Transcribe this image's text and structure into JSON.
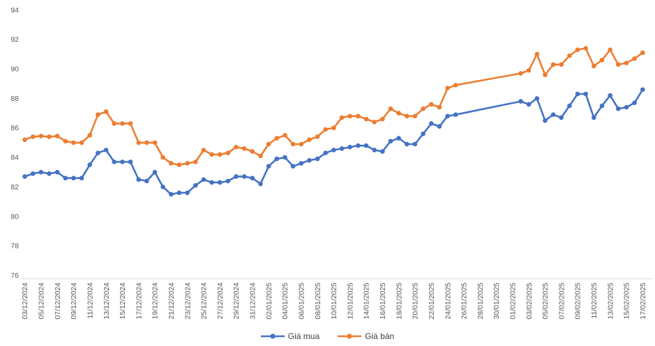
{
  "chart_data": {
    "type": "line",
    "title": "",
    "xlabel": "",
    "ylabel": "",
    "grid": false,
    "legend_position": "bottom",
    "ylim": [
      76,
      94
    ],
    "y_ticks": [
      76,
      78,
      80,
      82,
      84,
      86,
      88,
      90,
      92,
      94
    ],
    "axis_line_color": "#d9d9d9",
    "tick_label_color": "#595959",
    "x": [
      "03/12/2024",
      "04/12/2024",
      "05/12/2024",
      "06/12/2024",
      "07/12/2024",
      "08/12/2024",
      "09/12/2024",
      "10/12/2024",
      "11/12/2024",
      "12/12/2024",
      "13/12/2024",
      "14/12/2024",
      "15/12/2024",
      "16/12/2024",
      "17/12/2024",
      "18/12/2024",
      "19/12/2024",
      "20/12/2024",
      "21/12/2024",
      "22/12/2024",
      "23/12/2024",
      "24/12/2024",
      "25/12/2024",
      "26/12/2024",
      "27/12/2024",
      "28/12/2024",
      "29/12/2024",
      "30/12/2024",
      "31/12/2024",
      "01/01/2025",
      "02/01/2025",
      "03/01/2025",
      "04/01/2025",
      "05/01/2025",
      "06/01/2025",
      "07/01/2025",
      "08/01/2025",
      "09/01/2025",
      "10/01/2025",
      "11/01/2025",
      "12/01/2025",
      "13/01/2025",
      "14/01/2025",
      "15/01/2025",
      "16/01/2025",
      "17/01/2025",
      "18/01/2025",
      "19/01/2025",
      "20/01/2025",
      "21/01/2025",
      "22/01/2025",
      "23/01/2025",
      "24/01/2025",
      "25/01/2025",
      "26/01/2025",
      "27/01/2025",
      "28/01/2025",
      "29/01/2025",
      "30/01/2025",
      "31/01/2025",
      "01/02/2025",
      "02/02/2025",
      "03/02/2025",
      "04/02/2025",
      "05/02/2025",
      "06/02/2025",
      "07/02/2025",
      "08/02/2025",
      "09/02/2025",
      "10/02/2025",
      "11/02/2025",
      "12/02/2025",
      "13/02/2025",
      "14/02/2025",
      "15/02/2025",
      "16/02/2025",
      "17/02/2025"
    ],
    "x_tick_every": 2,
    "series": [
      {
        "name": "Giá mua",
        "color": "#4472c4",
        "values": [
          82.7,
          82.9,
          83.0,
          82.9,
          83.0,
          82.6,
          82.6,
          82.6,
          83.5,
          84.3,
          84.5,
          83.7,
          83.7,
          83.7,
          82.5,
          82.4,
          83.0,
          82.0,
          81.5,
          81.6,
          81.6,
          82.1,
          82.5,
          82.3,
          82.3,
          82.4,
          82.7,
          82.7,
          82.6,
          82.2,
          83.4,
          83.9,
          84.0,
          83.4,
          83.6,
          83.8,
          83.9,
          84.3,
          84.5,
          84.6,
          84.7,
          84.8,
          84.8,
          84.5,
          84.4,
          85.1,
          85.3,
          84.9,
          84.9,
          85.6,
          86.3,
          86.1,
          86.8,
          86.9,
          null,
          null,
          null,
          null,
          null,
          null,
          null,
          87.8,
          87.6,
          88.0,
          86.5,
          86.9,
          86.7,
          87.5,
          88.3,
          88.3,
          86.7,
          87.5,
          88.2,
          87.3,
          87.4,
          87.7,
          88.6
        ]
      },
      {
        "name": "Giá bán",
        "color": "#ed7d31",
        "values": [
          85.2,
          85.4,
          85.45,
          85.4,
          85.45,
          85.1,
          85.0,
          85.0,
          85.5,
          86.9,
          87.1,
          86.3,
          86.3,
          86.3,
          85.0,
          85.0,
          85.0,
          84.0,
          83.6,
          83.5,
          83.6,
          83.7,
          84.5,
          84.2,
          84.2,
          84.3,
          84.7,
          84.6,
          84.4,
          84.1,
          84.9,
          85.3,
          85.5,
          84.9,
          84.9,
          85.2,
          85.4,
          85.9,
          86.0,
          86.7,
          86.8,
          86.8,
          86.6,
          86.4,
          86.6,
          87.3,
          87.0,
          86.8,
          86.8,
          87.3,
          87.6,
          87.4,
          88.7,
          88.9,
          null,
          null,
          null,
          null,
          null,
          null,
          null,
          89.7,
          89.9,
          91.0,
          89.6,
          90.3,
          90.3,
          90.9,
          91.3,
          91.4,
          90.2,
          90.6,
          91.3,
          90.3,
          90.4,
          90.7,
          91.1
        ]
      }
    ]
  }
}
